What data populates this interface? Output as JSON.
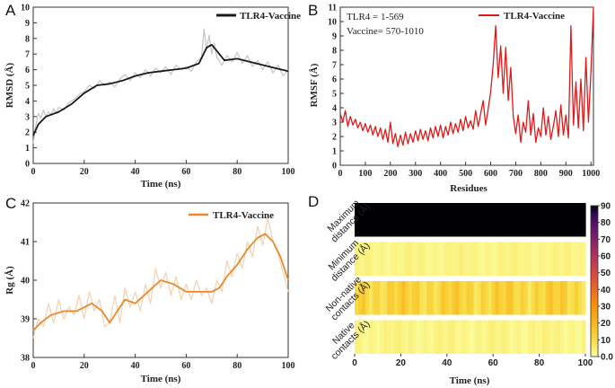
{
  "chart_data": [
    {
      "panel": "A",
      "type": "line",
      "title": "",
      "legend": "TLR4-Vaccine",
      "xlabel": "Time (ns)",
      "ylabel": "RMSD (Å)",
      "xlim": [
        0,
        100
      ],
      "ylim": [
        0,
        10
      ],
      "xticks": [
        0,
        20,
        40,
        60,
        80,
        100
      ],
      "yticks": [
        0,
        1,
        2,
        3,
        4,
        5,
        6,
        7,
        8,
        9,
        10
      ],
      "colors": {
        "smooth": "#1a1a1a",
        "raw": "#c4c4c4"
      },
      "smooth": {
        "x": [
          0,
          2,
          5,
          10,
          15,
          20,
          25,
          30,
          35,
          40,
          45,
          50,
          55,
          60,
          65,
          68,
          70,
          72,
          75,
          80,
          85,
          90,
          95,
          100
        ],
        "y": [
          1.8,
          2.5,
          3.0,
          3.3,
          3.8,
          4.5,
          5.0,
          5.1,
          5.3,
          5.6,
          5.8,
          5.9,
          6.0,
          6.1,
          6.4,
          7.4,
          7.6,
          7.2,
          6.6,
          6.7,
          6.5,
          6.3,
          6.1,
          5.9
        ]
      },
      "raw": {
        "x": [
          0,
          1,
          2,
          3,
          4,
          5,
          6,
          7,
          8,
          9,
          10,
          12,
          14,
          16,
          18,
          20,
          22,
          24,
          26,
          28,
          30,
          32,
          34,
          36,
          38,
          40,
          42,
          44,
          46,
          48,
          50,
          52,
          54,
          56,
          58,
          60,
          62,
          64,
          66,
          67,
          68,
          69,
          70,
          71,
          72,
          74,
          76,
          78,
          80,
          82,
          84,
          86,
          88,
          90,
          92,
          94,
          96,
          98,
          100
        ],
        "y": [
          1.3,
          2.4,
          3.2,
          2.9,
          3.4,
          3.0,
          3.3,
          3.1,
          3.5,
          3.2,
          3.6,
          3.4,
          3.9,
          4.1,
          4.4,
          4.6,
          5.0,
          4.8,
          5.3,
          5.0,
          5.2,
          4.9,
          5.4,
          5.7,
          5.3,
          5.8,
          5.5,
          6.0,
          5.6,
          6.1,
          5.8,
          6.2,
          5.7,
          6.3,
          6.0,
          6.2,
          5.9,
          6.5,
          6.8,
          8.6,
          7.3,
          8.2,
          7.0,
          7.7,
          6.8,
          6.3,
          6.9,
          6.5,
          7.1,
          6.4,
          6.9,
          6.2,
          6.6,
          6.0,
          6.5,
          5.8,
          6.3,
          5.6,
          6.0
        ]
      }
    },
    {
      "panel": "B",
      "type": "line",
      "title": "",
      "legend": "TLR4-Vaccine",
      "annotations": [
        "TLR4 = 1-569",
        "Vaccine= 570-1010"
      ],
      "xlabel": "Residues",
      "ylabel": "RMSF (Å)",
      "xlim": [
        0,
        1010
      ],
      "ylim": [
        0,
        11
      ],
      "xticks": [
        0,
        100,
        200,
        300,
        400,
        500,
        600,
        700,
        800,
        900,
        1000
      ],
      "yticks": [
        0,
        1,
        2,
        3,
        4,
        5,
        6,
        7,
        8,
        9,
        10,
        11
      ],
      "color": "#e01a1a",
      "series": {
        "x": [
          0,
          10,
          20,
          30,
          40,
          50,
          60,
          70,
          80,
          90,
          100,
          110,
          120,
          130,
          140,
          150,
          160,
          170,
          180,
          190,
          200,
          210,
          220,
          230,
          240,
          250,
          260,
          270,
          280,
          290,
          300,
          310,
          320,
          330,
          340,
          350,
          360,
          370,
          380,
          390,
          400,
          410,
          420,
          430,
          440,
          450,
          460,
          470,
          480,
          490,
          500,
          510,
          520,
          530,
          540,
          550,
          560,
          570,
          580,
          590,
          600,
          610,
          620,
          630,
          640,
          650,
          660,
          670,
          680,
          690,
          700,
          710,
          720,
          730,
          740,
          750,
          760,
          770,
          780,
          790,
          800,
          810,
          820,
          830,
          840,
          850,
          860,
          870,
          880,
          890,
          900,
          910,
          920,
          930,
          940,
          950,
          960,
          970,
          980,
          990,
          1000,
          1010
        ],
        "y": [
          3.6,
          3.0,
          3.8,
          2.7,
          3.4,
          2.8,
          3.2,
          2.6,
          3.0,
          2.4,
          2.9,
          2.3,
          2.8,
          2.1,
          2.7,
          2.0,
          2.6,
          1.8,
          2.5,
          1.6,
          3.0,
          1.5,
          2.2,
          1.3,
          2.1,
          1.4,
          2.3,
          1.5,
          2.2,
          1.6,
          2.4,
          1.7,
          2.5,
          1.8,
          2.4,
          1.7,
          2.6,
          1.9,
          2.7,
          2.0,
          2.8,
          1.9,
          2.7,
          2.1,
          3.0,
          2.2,
          2.9,
          2.3,
          3.2,
          2.4,
          3.4,
          2.6,
          3.1,
          2.5,
          3.8,
          2.7,
          3.6,
          4.5,
          2.8,
          3.9,
          5.1,
          7.0,
          9.7,
          6.1,
          8.3,
          5.0,
          8.2,
          4.5,
          6.8,
          3.4,
          2.2,
          3.5,
          1.6,
          3.0,
          2.3,
          4.5,
          2.1,
          3.6,
          1.6,
          2.6,
          2.0,
          4.0,
          2.1,
          3.4,
          1.8,
          2.7,
          3.8,
          2.0,
          4.2,
          2.1,
          3.5,
          1.9,
          9.7,
          2.8,
          5.8,
          2.6,
          6.0,
          2.4,
          7.5,
          3.0,
          6.5,
          11.0
        ]
      }
    },
    {
      "panel": "C",
      "type": "line",
      "title": "",
      "legend": "TLR4-Vaccine",
      "xlabel": "Time (ns)",
      "ylabel": "Rg (Å)",
      "xlim": [
        0,
        100
      ],
      "ylim": [
        38,
        42
      ],
      "xticks": [
        0,
        20,
        40,
        60,
        80,
        100
      ],
      "yticks": [
        38,
        39,
        40,
        41,
        42
      ],
      "colors": {
        "smooth": "#e8892a",
        "raw": "#f6d0b0"
      },
      "smooth": {
        "x": [
          0,
          3,
          7,
          12,
          17,
          20,
          23,
          27,
          30,
          33,
          36,
          40,
          45,
          50,
          55,
          60,
          65,
          70,
          73,
          76,
          80,
          84,
          88,
          91,
          94,
          97,
          100
        ],
        "y": [
          38.7,
          38.9,
          39.1,
          39.2,
          39.2,
          39.3,
          39.4,
          39.2,
          38.9,
          39.2,
          39.5,
          39.4,
          39.7,
          40.0,
          39.9,
          39.7,
          39.7,
          39.7,
          39.8,
          40.1,
          40.4,
          40.8,
          41.1,
          41.2,
          41.0,
          40.6,
          40.0
        ]
      },
      "raw": {
        "x": [
          0,
          2,
          4,
          6,
          8,
          10,
          12,
          14,
          16,
          18,
          20,
          22,
          24,
          26,
          28,
          30,
          32,
          34,
          36,
          38,
          40,
          42,
          44,
          46,
          48,
          50,
          52,
          54,
          56,
          58,
          60,
          62,
          64,
          66,
          68,
          70,
          72,
          74,
          76,
          78,
          80,
          82,
          84,
          86,
          88,
          90,
          92,
          94,
          96,
          98,
          100
        ],
        "y": [
          38.5,
          39.0,
          38.8,
          39.4,
          38.9,
          39.5,
          39.0,
          39.3,
          39.1,
          39.6,
          39.0,
          39.7,
          39.2,
          39.5,
          38.8,
          38.9,
          39.6,
          38.9,
          39.8,
          39.3,
          39.7,
          39.2,
          39.9,
          39.4,
          40.3,
          39.8,
          40.2,
          39.6,
          40.1,
          39.5,
          39.9,
          39.5,
          40.0,
          39.6,
          39.8,
          39.4,
          40.0,
          39.7,
          40.5,
          40.1,
          40.7,
          40.3,
          41.0,
          40.6,
          41.4,
          40.9,
          41.6,
          41.0,
          40.7,
          40.2,
          39.7
        ]
      }
    },
    {
      "panel": "D",
      "type": "heatmap",
      "title": "",
      "xlabel": "Time (ns)",
      "rows": [
        "Maximum distance (Å)",
        "Minimum distance (Å)",
        "Non-native contacts (Å)",
        "Native contacts (Å)"
      ],
      "row_values": [
        92,
        3,
        12,
        3
      ],
      "row_variation": [
        0,
        1.5,
        6,
        2
      ],
      "xlim": [
        0,
        100
      ],
      "xticks": [
        0,
        20,
        40,
        60,
        80,
        100
      ],
      "colorbar": {
        "min": 0,
        "max": 90,
        "ticks": [
          0.0,
          10,
          20,
          30,
          40,
          50,
          60,
          70,
          80,
          90
        ],
        "tick_labels": [
          "0.0",
          "10",
          "20",
          "30",
          "40",
          "50",
          "60",
          "70",
          "80",
          "90"
        ]
      }
    }
  ],
  "panel_labels": [
    "A",
    "B",
    "C",
    "D"
  ]
}
